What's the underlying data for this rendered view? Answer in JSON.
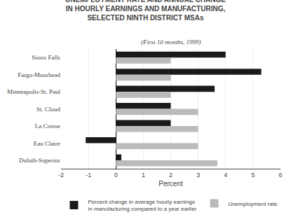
{
  "chart_data": {
    "type": "bar",
    "orientation": "horizontal",
    "title": "UNEMPLOYMENT RATE AND ANNUAL CHANGE\nIN HOURLY EARNINGS AND MANUFACTURING,\nSELECTED NINTH DISTRICT MSAs",
    "subtitle": "(First 10 months, 1999)",
    "categories": [
      "Sioux Falls",
      "Fargo-Moorhead",
      "Minneapolis-St. Paul",
      "St. Cloud",
      "La Crosse",
      "Eau Claire",
      "Duluth-Superior"
    ],
    "series": [
      {
        "name": "Percent change in average hourly earnings\nin manufacturing compared to a year earlier",
        "color": "#1a1a1a",
        "values": [
          4.0,
          5.3,
          3.6,
          2.0,
          2.0,
          -1.1,
          0.2
        ]
      },
      {
        "name": "Unemployment rate",
        "color": "#bbbbbb",
        "values": [
          2.0,
          2.0,
          2.0,
          3.0,
          3.0,
          3.0,
          3.7
        ]
      }
    ],
    "x_label": "Percent",
    "xlim": [
      -2,
      6
    ],
    "xticks": [
      -2,
      -1,
      0,
      1,
      2,
      3,
      4,
      5,
      6
    ],
    "grid": true,
    "legend": "bottom"
  }
}
